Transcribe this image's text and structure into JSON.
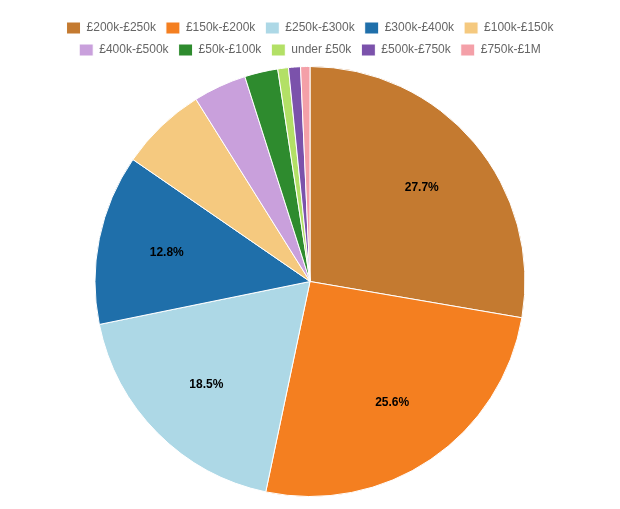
{
  "chart_data": {
    "type": "pie",
    "categories": [
      "£200k-£250k",
      "£150k-£200k",
      "£250k-£300k",
      "£300k-£400k",
      "£100k-£150k",
      "£400k-£500k",
      "£50k-£100k",
      "under £50k",
      "£500k-£750k",
      "£750k-£1M"
    ],
    "values": [
      27.7,
      25.6,
      18.5,
      12.8,
      6.5,
      4.0,
      2.5,
      0.8,
      0.9,
      0.7
    ],
    "value_labels": [
      "27.7%",
      "25.6%",
      "18.5%",
      "12.8%",
      null,
      null,
      null,
      null,
      null,
      null
    ],
    "colors": [
      "#c47a30",
      "#f47f20",
      "#add8e6",
      "#1f6faa",
      "#f5c97f",
      "#c9a0dc",
      "#2e8b2e",
      "#b3e066",
      "#7b52ab",
      "#f4a0a8"
    ],
    "legend": "top"
  }
}
